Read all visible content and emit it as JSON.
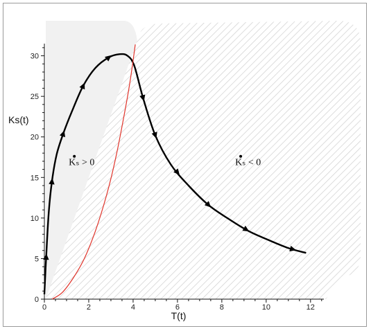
{
  "chart_data": {
    "type": "line",
    "xlabel": "T(t)",
    "ylabel": "Ks(t)",
    "xlim": [
      0,
      12.6
    ],
    "ylim": [
      0,
      31.5
    ],
    "x_ticks": [
      0,
      2,
      4,
      6,
      8,
      10,
      12
    ],
    "y_ticks": [
      0,
      5,
      10,
      15,
      20,
      25,
      30
    ],
    "region_labels": [
      {
        "text": "Kₛ > 0",
        "x": 1.1,
        "y": 16.5
      },
      {
        "text": "Kₛ < 0",
        "x": 8.6,
        "y": 16.5
      }
    ],
    "series": [
      {
        "color": "#000000",
        "points": [
          [
            0.0,
            0.6
          ],
          [
            0.08,
            5.2
          ],
          [
            0.2,
            10.8
          ],
          [
            0.34,
            14.5
          ],
          [
            0.55,
            17.8
          ],
          [
            0.85,
            20.4
          ],
          [
            1.25,
            23.2
          ],
          [
            1.75,
            26.3
          ],
          [
            2.3,
            28.5
          ],
          [
            2.9,
            29.8
          ],
          [
            3.4,
            30.2
          ],
          [
            3.75,
            30.0
          ],
          [
            4.05,
            28.8
          ],
          [
            4.45,
            24.8
          ],
          [
            5.0,
            20.2
          ],
          [
            5.7,
            16.6
          ],
          [
            6.5,
            14.0
          ],
          [
            7.4,
            11.6
          ],
          [
            8.3,
            9.9
          ],
          [
            9.2,
            8.4
          ],
          [
            10.1,
            7.3
          ],
          [
            11.0,
            6.3
          ],
          [
            11.8,
            5.7
          ]
        ],
        "arrows": [
          0.08,
          0.34,
          0.85,
          1.75,
          2.9,
          4.45,
          5.0,
          6.0,
          7.4,
          9.1,
          11.2
        ]
      },
      {
        "color": "#e0332a",
        "points": [
          [
            0.35,
            0.0
          ],
          [
            0.8,
            0.8
          ],
          [
            1.3,
            2.6
          ],
          [
            1.8,
            5.0
          ],
          [
            2.3,
            8.4
          ],
          [
            2.8,
            12.8
          ],
          [
            3.2,
            17.2
          ],
          [
            3.55,
            22.0
          ],
          [
            3.85,
            26.6
          ],
          [
            4.1,
            31.4
          ]
        ]
      }
    ]
  }
}
